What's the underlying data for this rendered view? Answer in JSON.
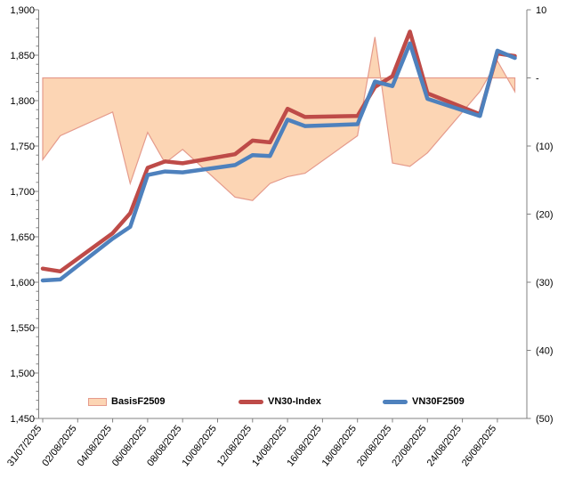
{
  "chart_data": {
    "type": "line-area-combo",
    "title": "",
    "x_dates": [
      "31/07/2025",
      "01/08/2025",
      "04/08/2025",
      "05/08/2025",
      "06/08/2025",
      "07/08/2025",
      "08/08/2025",
      "11/08/2025",
      "12/08/2025",
      "13/08/2025",
      "14/08/2025",
      "15/08/2025",
      "18/08/2025",
      "19/08/2025",
      "20/08/2025",
      "21/08/2025",
      "22/08/2025",
      "25/08/2025",
      "26/08/2025",
      "27/08/2025"
    ],
    "x_day_offsets": [
      0,
      1,
      4,
      5,
      6,
      7,
      8,
      11,
      12,
      13,
      14,
      15,
      18,
      19,
      20,
      21,
      22,
      25,
      26,
      27
    ],
    "x_tick_labels": [
      "31/07/2025",
      "02/08/2025",
      "04/08/2025",
      "06/08/2025",
      "08/08/2025",
      "10/08/2025",
      "12/08/2025",
      "14/08/2025",
      "16/08/2025",
      "18/08/2025",
      "20/08/2025",
      "22/08/2025",
      "24/08/2025",
      "26/08/2025"
    ],
    "left_axis": {
      "min": 1450,
      "max": 1900,
      "tick_step": 50,
      "minor_step": 10,
      "tick_labels": [
        "1,900",
        "1,850",
        "1,800",
        "1,750",
        "1,700",
        "1,650",
        "1,600",
        "1,550",
        "1,500",
        "1,450"
      ]
    },
    "right_axis": {
      "min": -50,
      "max": 10,
      "tick_step": 10,
      "tick_labels": [
        "10",
        "-",
        "(10)",
        "(20)",
        "(30)",
        "(40)",
        "(50)"
      ]
    },
    "series": [
      {
        "name": "BasisF2509",
        "type": "area",
        "axis": "right",
        "fill_color": "#FCD5B4",
        "border_color": "#E59B8C",
        "values": [
          -12,
          -8.5,
          -5,
          -15.5,
          -8,
          -12.5,
          -10.5,
          -17.5,
          -18,
          -15.5,
          -14.5,
          -14,
          -8.5,
          6,
          -12.5,
          -13,
          -11,
          -2,
          2.5,
          -2
        ]
      },
      {
        "name": "VN30-Index",
        "type": "line",
        "axis": "left",
        "color": "#BE4B48",
        "values": [
          1615,
          1612,
          1654,
          1676,
          1726,
          1733,
          1731,
          1741,
          1756,
          1754,
          1791,
          1782,
          1783,
          1815,
          1827,
          1876,
          1808,
          1785,
          1852,
          1849
        ]
      },
      {
        "name": "VN30F2509",
        "type": "line",
        "axis": "left",
        "color": "#4E81BD",
        "values": [
          1602,
          1603,
          1648,
          1661,
          1718,
          1722,
          1721,
          1729,
          1740,
          1739,
          1779,
          1772,
          1774,
          1821,
          1816,
          1863,
          1802,
          1783,
          1855,
          1847
        ]
      }
    ],
    "axis_color": "#808080"
  }
}
